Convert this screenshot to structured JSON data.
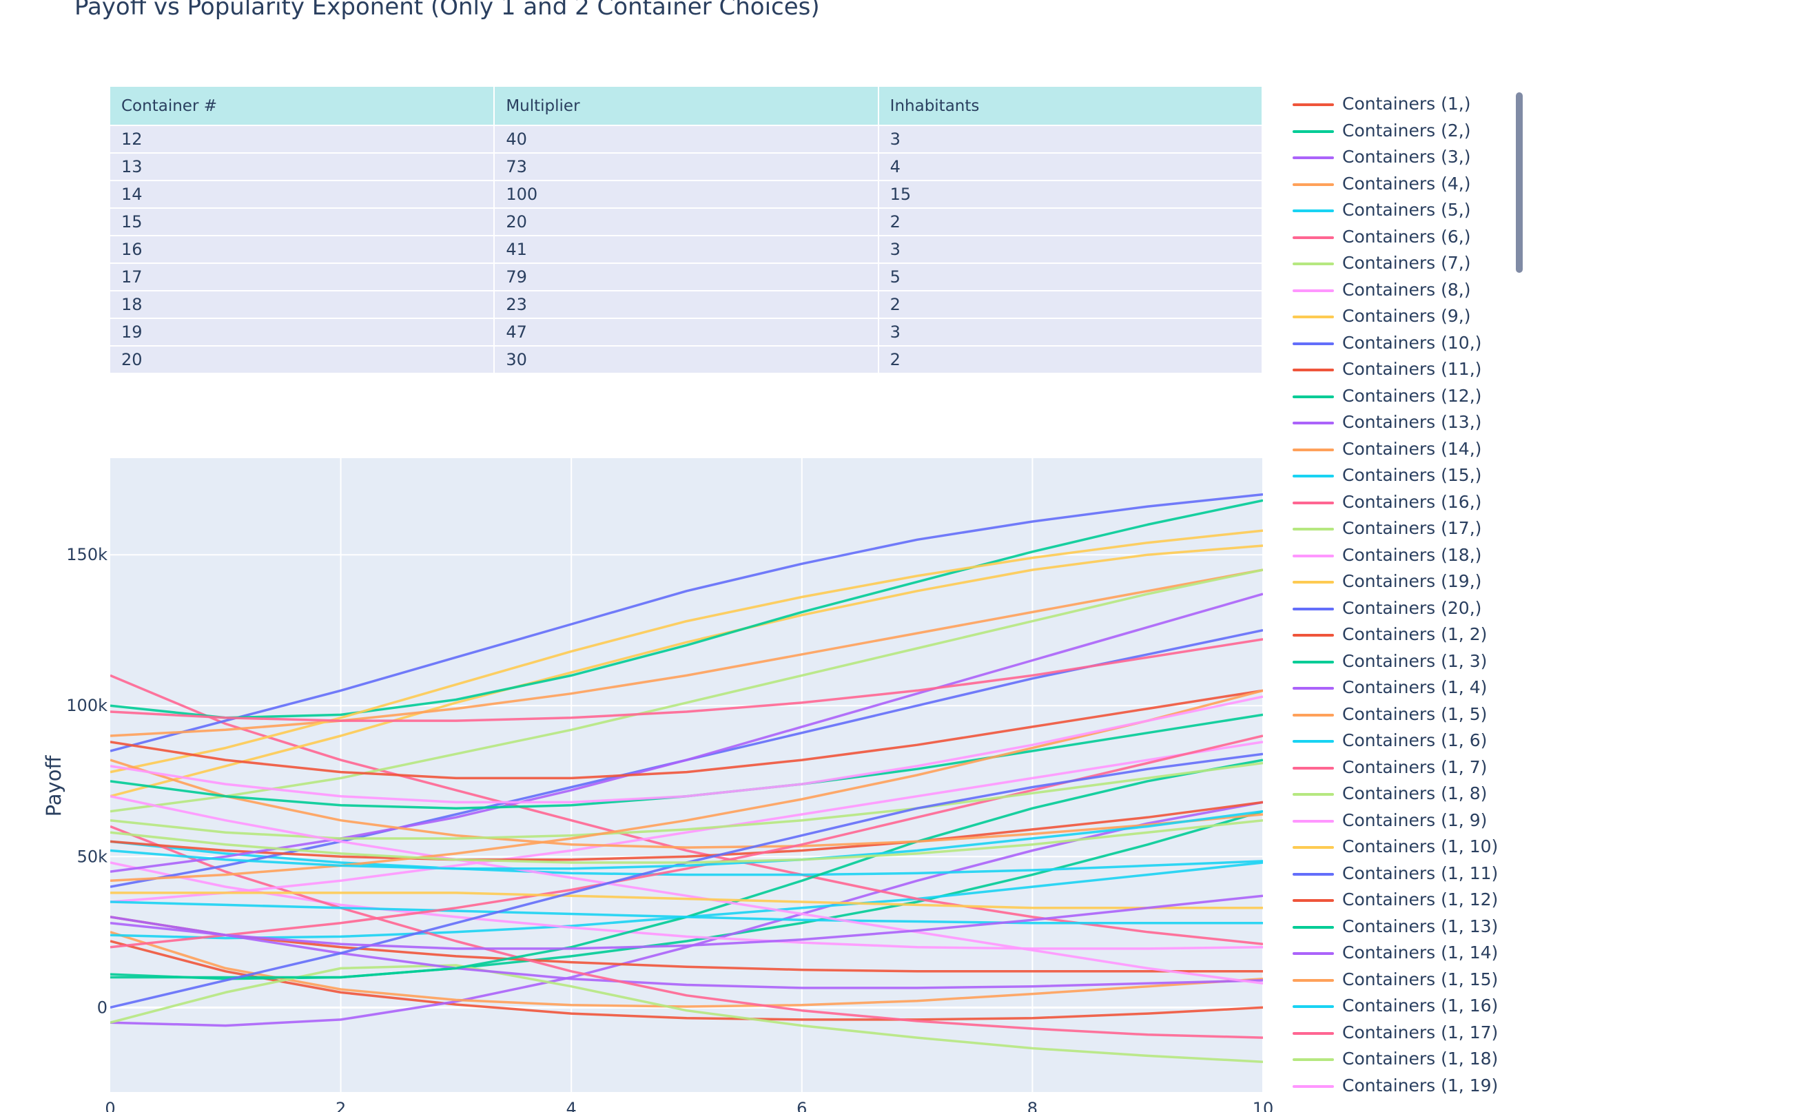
{
  "title": "Payoff vs Popularity Exponent (Only 1 and 2 Container Choices)",
  "colors": {
    "plot_bg": "#e5ecf6",
    "grid": "#ffffff",
    "header_bg": "#bbeaec",
    "cell_bg": "#e5e8f6",
    "scrollbar": "#808ba5",
    "palette": [
      "#ef553b",
      "#00cc96",
      "#ab63fa",
      "#ffa15a",
      "#19d3f3",
      "#ff6692",
      "#b6e880",
      "#ff97ff",
      "#fecb52",
      "#636efa"
    ]
  },
  "table": {
    "headers": [
      "Container #",
      "Multiplier",
      "Inhabitants"
    ],
    "rows": [
      [
        "12",
        "40",
        "3"
      ],
      [
        "13",
        "73",
        "4"
      ],
      [
        "14",
        "100",
        "15"
      ],
      [
        "15",
        "20",
        "2"
      ],
      [
        "16",
        "41",
        "3"
      ],
      [
        "17",
        "79",
        "5"
      ],
      [
        "18",
        "23",
        "2"
      ],
      [
        "19",
        "47",
        "3"
      ],
      [
        "20",
        "30",
        "2"
      ]
    ]
  },
  "legend": {
    "items": [
      "Containers (1,)",
      "Containers (2,)",
      "Containers (3,)",
      "Containers (4,)",
      "Containers (5,)",
      "Containers (6,)",
      "Containers (7,)",
      "Containers (8,)",
      "Containers (9,)",
      "Containers (10,)",
      "Containers (11,)",
      "Containers (12,)",
      "Containers (13,)",
      "Containers (14,)",
      "Containers (15,)",
      "Containers (16,)",
      "Containers (17,)",
      "Containers (18,)",
      "Containers (19,)",
      "Containers (20,)",
      "Containers (1, 2)",
      "Containers (1, 3)",
      "Containers (1, 4)",
      "Containers (1, 5)",
      "Containers (1, 6)",
      "Containers (1, 7)",
      "Containers (1, 8)",
      "Containers (1, 9)",
      "Containers (1, 10)",
      "Containers (1, 11)",
      "Containers (1, 12)",
      "Containers (1, 13)",
      "Containers (1, 14)",
      "Containers (1, 15)",
      "Containers (1, 16)",
      "Containers (1, 17)",
      "Containers (1, 18)",
      "Containers (1, 19)"
    ]
  },
  "chart_data": {
    "type": "line",
    "title": "Payoff vs Popularity Exponent (Only 1 and 2 Container Choices)",
    "xlabel": "",
    "ylabel": "Payoff",
    "xlim": [
      0,
      10
    ],
    "ylim": [
      -28000,
      182000
    ],
    "x": [
      0,
      1,
      2,
      3,
      4,
      5,
      6,
      7,
      8,
      9,
      10
    ],
    "x_ticks": [
      0,
      2,
      4,
      6,
      8,
      10
    ],
    "x_tick_labels": [
      "0",
      "2",
      "4",
      "6",
      "8",
      "10"
    ],
    "y_ticks": [
      0,
      50000,
      100000,
      150000
    ],
    "y_tick_labels": [
      "0",
      "50k",
      "100k",
      "150k"
    ],
    "grid": true,
    "legend_position": "right",
    "series": [
      {
        "name": "Containers (1,)",
        "color": "#ef553b",
        "values": [
          22000,
          12000,
          5000,
          1000,
          -2000,
          -3500,
          -4000,
          -4000,
          -3500,
          -2000,
          0
        ]
      },
      {
        "name": "Containers (2,)",
        "color": "#00cc96",
        "values": [
          11000,
          9500,
          10000,
          13000,
          17000,
          22000,
          28000,
          35000,
          44000,
          54000,
          65000
        ]
      },
      {
        "name": "Containers (3,)",
        "color": "#ab63fa",
        "values": [
          -5000,
          -6000,
          -4000,
          2000,
          10000,
          20000,
          31000,
          42000,
          52000,
          61000,
          68000
        ]
      },
      {
        "name": "Containers (4,)",
        "color": "#ffa15a",
        "values": [
          25000,
          13000,
          6000,
          2500,
          800,
          300,
          800,
          2200,
          4500,
          7000,
          9500
        ]
      },
      {
        "name": "Containers (5,)",
        "color": "#19d3f3",
        "values": [
          24000,
          23000,
          23500,
          25000,
          27000,
          30000,
          33000,
          36000,
          40000,
          44000,
          48000
        ]
      },
      {
        "name": "Containers (6,)",
        "color": "#ff6692",
        "values": [
          110000,
          94000,
          82000,
          72000,
          62000,
          52000,
          44000,
          36000,
          30000,
          25000,
          21000
        ]
      },
      {
        "name": "Containers (7,)",
        "color": "#b6e880",
        "values": [
          -5000,
          5000,
          13000,
          14000,
          7000,
          -1000,
          -6000,
          -10000,
          -13500,
          -16000,
          -18000
        ]
      },
      {
        "name": "Containers (8,)",
        "color": "#ff97ff",
        "values": [
          48000,
          40000,
          34000,
          30000,
          26500,
          23500,
          21500,
          20000,
          19500,
          19500,
          20000
        ]
      },
      {
        "name": "Containers (9,)",
        "color": "#fecb52",
        "values": [
          70000,
          80000,
          90000,
          101000,
          111000,
          121000,
          130000,
          138000,
          145000,
          150000,
          153000
        ]
      },
      {
        "name": "Containers (10,)",
        "color": "#636efa",
        "values": [
          85000,
          95000,
          105000,
          116000,
          127000,
          138000,
          147000,
          155000,
          161000,
          166000,
          170000
        ]
      },
      {
        "name": "Containers (11,)",
        "color": "#ef553b",
        "values": [
          30000,
          24000,
          20000,
          17000,
          15000,
          13500,
          12500,
          12000,
          12000,
          12000,
          12000
        ]
      },
      {
        "name": "Containers (12,)",
        "color": "#00cc96",
        "values": [
          100000,
          96000,
          97000,
          102000,
          110000,
          120000,
          131000,
          141000,
          151000,
          160000,
          168000
        ]
      },
      {
        "name": "Containers (13,)",
        "color": "#ab63fa",
        "values": [
          30000,
          24000,
          18000,
          13000,
          9500,
          7500,
          6500,
          6500,
          7000,
          8000,
          9000
        ]
      },
      {
        "name": "Containers (14,)",
        "color": "#ffa15a",
        "values": [
          90000,
          92000,
          95000,
          99000,
          104000,
          110000,
          117000,
          124000,
          131000,
          138000,
          145000
        ]
      },
      {
        "name": "Containers (15,)",
        "color": "#19d3f3",
        "values": [
          55000,
          51000,
          48000,
          46000,
          44500,
          44000,
          44000,
          44500,
          45500,
          47000,
          48500
        ]
      },
      {
        "name": "Containers (16,)",
        "color": "#ff6692",
        "values": [
          60000,
          45000,
          33000,
          22000,
          12000,
          4000,
          -1000,
          -4500,
          -7000,
          -9000,
          -10000
        ]
      },
      {
        "name": "Containers (17,)",
        "color": "#b6e880",
        "values": [
          65000,
          70000,
          76000,
          84000,
          92000,
          101000,
          110000,
          119000,
          128000,
          137000,
          145000
        ]
      },
      {
        "name": "Containers (18,)",
        "color": "#ff97ff",
        "values": [
          35000,
          38000,
          42000,
          47000,
          52000,
          58000,
          64000,
          70000,
          76000,
          82000,
          88000
        ]
      },
      {
        "name": "Containers (19,)",
        "color": "#fecb52",
        "values": [
          78000,
          86000,
          96000,
          107000,
          118000,
          128000,
          136000,
          143000,
          149000,
          154000,
          158000
        ]
      },
      {
        "name": "Containers (20,)",
        "color": "#636efa",
        "values": [
          40000,
          47000,
          55000,
          64000,
          73000,
          82000,
          91000,
          100000,
          109000,
          117000,
          125000
        ]
      },
      {
        "name": "Containers (1, 2)",
        "color": "#ef553b",
        "values": [
          55000,
          52000,
          50000,
          49000,
          49000,
          50000,
          52000,
          55000,
          59000,
          63000,
          68000
        ]
      },
      {
        "name": "Containers (1, 3)",
        "color": "#00cc96",
        "values": [
          10000,
          10000,
          10000,
          13000,
          20000,
          30000,
          42000,
          55000,
          66000,
          75000,
          82000
        ]
      },
      {
        "name": "Containers (1, 4)",
        "color": "#ab63fa",
        "values": [
          45000,
          50000,
          56000,
          63000,
          72000,
          82000,
          93000,
          104000,
          115000,
          126000,
          137000
        ]
      },
      {
        "name": "Containers (1, 5)",
        "color": "#ffa15a",
        "values": [
          82000,
          70000,
          62000,
          57000,
          54000,
          53000,
          53500,
          55000,
          57500,
          60500,
          64000
        ]
      },
      {
        "name": "Containers (1, 6)",
        "color": "#19d3f3",
        "values": [
          35000,
          34000,
          33000,
          32000,
          31000,
          30000,
          29000,
          28500,
          28000,
          28000,
          28000
        ]
      },
      {
        "name": "Containers (1, 7)",
        "color": "#ff6692",
        "values": [
          20000,
          24000,
          28000,
          33000,
          39000,
          46000,
          54000,
          63000,
          72000,
          81000,
          90000
        ]
      },
      {
        "name": "Containers (1, 8)",
        "color": "#b6e880",
        "values": [
          62000,
          58000,
          56000,
          56000,
          57000,
          59000,
          62000,
          66000,
          71000,
          76000,
          81000
        ]
      },
      {
        "name": "Containers (1, 9)",
        "color": "#ff97ff",
        "values": [
          70000,
          62000,
          55000,
          49000,
          43000,
          37000,
          31000,
          25000,
          19000,
          13000,
          8000
        ]
      },
      {
        "name": "Containers (1, 10)",
        "color": "#fecb52",
        "values": [
          38000,
          38000,
          38000,
          38000,
          37000,
          36000,
          35000,
          34000,
          33000,
          33000,
          33000
        ]
      },
      {
        "name": "Containers (1, 11)",
        "color": "#636efa",
        "values": [
          0,
          9000,
          18000,
          28000,
          38000,
          48000,
          57000,
          66000,
          73000,
          79000,
          84000
        ]
      },
      {
        "name": "Containers (1, 12)",
        "color": "#ef553b",
        "values": [
          88000,
          82000,
          78000,
          76000,
          76000,
          78000,
          82000,
          87000,
          93000,
          99000,
          105000
        ]
      },
      {
        "name": "Containers (1, 13)",
        "color": "#00cc96",
        "values": [
          75000,
          70000,
          67000,
          66000,
          67000,
          70000,
          74000,
          79000,
          85000,
          91000,
          97000
        ]
      },
      {
        "name": "Containers (1, 14)",
        "color": "#ab63fa",
        "values": [
          28000,
          24000,
          21000,
          19500,
          19500,
          20500,
          22500,
          25500,
          29000,
          33000,
          37000
        ]
      },
      {
        "name": "Containers (1, 15)",
        "color": "#ffa15a",
        "values": [
          42000,
          44000,
          47000,
          51000,
          56000,
          62000,
          69000,
          77000,
          86000,
          95000,
          105000
        ]
      },
      {
        "name": "Containers (1, 16)",
        "color": "#19d3f3",
        "values": [
          52000,
          49000,
          47000,
          46000,
          46000,
          47000,
          49000,
          52000,
          56000,
          60000,
          65000
        ]
      },
      {
        "name": "Containers (1, 17)",
        "color": "#ff6692",
        "values": [
          98000,
          96000,
          95000,
          95000,
          96000,
          98000,
          101000,
          105000,
          110000,
          116000,
          122000
        ]
      },
      {
        "name": "Containers (1, 18)",
        "color": "#b6e880",
        "values": [
          58000,
          54000,
          51000,
          49000,
          48000,
          48000,
          49000,
          51000,
          54000,
          58000,
          62000
        ]
      },
      {
        "name": "Containers (1, 19)",
        "color": "#ff97ff",
        "values": [
          80000,
          74000,
          70000,
          68000,
          68000,
          70000,
          74000,
          80000,
          87000,
          95000,
          103000
        ]
      }
    ]
  }
}
